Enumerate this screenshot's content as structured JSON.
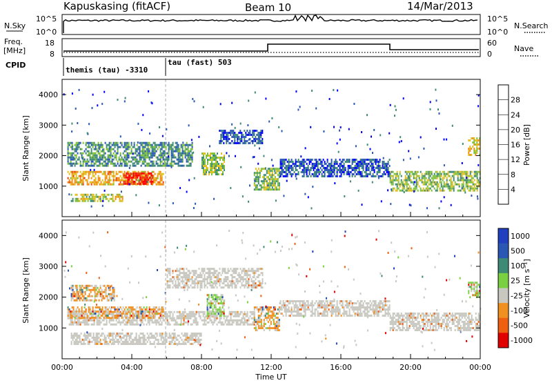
{
  "header": {
    "station": "Kapuskasing (fitACF)",
    "beam": "Beam 10",
    "date": "14/Mar/2013"
  },
  "noise_panel": {
    "left_label": "N.Sky",
    "left_ticks": [
      "10^5",
      "10^0"
    ],
    "right_ticks": [
      "10^5",
      "10^0"
    ],
    "right_label": "N.Search"
  },
  "freq_panel": {
    "left_label_1": "Freq.",
    "left_label_2": "[MHz]",
    "left_ticks": [
      "18",
      "8"
    ],
    "right_ticks": [
      "60",
      "0"
    ],
    "right_label": "Nave"
  },
  "cpid": {
    "label": "CPID",
    "segments": [
      "themis (tau) -3310",
      "tau (fast) 503"
    ]
  },
  "colors": {
    "power": [
      "#0000ff",
      "#2a57b3",
      "#3e8a74",
      "#7fc03a",
      "#e0c020",
      "#f08a10",
      "#e84010",
      "#ff0000"
    ],
    "velocity": [
      "#2040c0",
      "#2a57b3",
      "#3e8a74",
      "#7ad040",
      "#c8c8c0",
      "#f09020",
      "#ee6010",
      "#e00000"
    ],
    "ground_scatter": "#c8c8c0"
  },
  "chart_data": [
    {
      "type": "heatmap",
      "panel": "power",
      "ylabel": "Slant Range [km]",
      "y_ticks": [
        "1000",
        "2000",
        "3000",
        "4000"
      ],
      "ylim": [
        0,
        4500
      ],
      "colorbar_label": "Power [dB]",
      "colorbar_ticks": [
        "4",
        "8",
        "12",
        "16",
        "20",
        "24",
        "28"
      ],
      "colorbar_range": [
        0,
        30
      ],
      "echo_bands": [
        {
          "t_start": 0.3,
          "t_end": 5.8,
          "r_start": 1050,
          "r_end": 1500,
          "level": 20
        },
        {
          "t_start": 3.5,
          "t_end": 5.2,
          "r_start": 1100,
          "r_end": 1450,
          "level": 28
        },
        {
          "t_start": 0.3,
          "t_end": 7.5,
          "r_start": 1700,
          "r_end": 2450,
          "level": 10
        },
        {
          "t_start": 0.5,
          "t_end": 3.5,
          "r_start": 500,
          "r_end": 750,
          "level": 16
        },
        {
          "t_start": 8.0,
          "t_end": 9.3,
          "r_start": 1400,
          "r_end": 2100,
          "level": 14
        },
        {
          "t_start": 9.0,
          "t_end": 11.5,
          "r_start": 2400,
          "r_end": 2850,
          "level": 6
        },
        {
          "t_start": 11.0,
          "t_end": 12.5,
          "r_start": 900,
          "r_end": 1600,
          "level": 14
        },
        {
          "t_start": 12.5,
          "t_end": 18.8,
          "r_start": 1350,
          "r_end": 1900,
          "level": 6
        },
        {
          "t_start": 18.8,
          "t_end": 24.0,
          "r_start": 850,
          "r_end": 1500,
          "level": 14
        },
        {
          "t_start": 23.3,
          "t_end": 24.0,
          "r_start": 2000,
          "r_end": 2600,
          "level": 18
        }
      ]
    },
    {
      "type": "heatmap",
      "panel": "velocity",
      "ylabel": "Slant Range [km]",
      "y_ticks": [
        "1000",
        "2000",
        "3000",
        "4000"
      ],
      "ylim": [
        0,
        4500
      ],
      "xlabel": "Time UT",
      "x_ticks": [
        "00:00",
        "04:00",
        "08:00",
        "12:00",
        "16:00",
        "20:00",
        "00:00"
      ],
      "xlim": [
        0,
        24
      ],
      "colorbar_label": "Velocity [m s⁻¹]",
      "colorbar_ticks": [
        "1000",
        "500",
        "100",
        "25",
        "-25",
        "-100",
        "-500",
        "-1000"
      ],
      "echo_bands": [
        {
          "t_start": 0.3,
          "t_end": 11.0,
          "r_start": 1100,
          "r_end": 1550,
          "level": "ground"
        },
        {
          "t_start": 0.3,
          "t_end": 5.8,
          "r_start": 1300,
          "r_end": 1700,
          "level": -100
        },
        {
          "t_start": 0.5,
          "t_end": 3.0,
          "r_start": 1900,
          "r_end": 2400,
          "level": -100
        },
        {
          "t_start": 8.3,
          "t_end": 9.3,
          "r_start": 1400,
          "r_end": 2100,
          "level": 100
        },
        {
          "t_start": 6.0,
          "t_end": 11.5,
          "r_start": 2300,
          "r_end": 2950,
          "level": "ground"
        },
        {
          "t_start": 0.5,
          "t_end": 8.0,
          "r_start": 500,
          "r_end": 850,
          "level": "ground"
        },
        {
          "t_start": 11.0,
          "t_end": 12.5,
          "r_start": 950,
          "r_end": 1700,
          "level": -100
        },
        {
          "t_start": 12.5,
          "t_end": 18.8,
          "r_start": 1400,
          "r_end": 1900,
          "level": "ground"
        },
        {
          "t_start": 18.8,
          "t_end": 24.0,
          "r_start": 900,
          "r_end": 1500,
          "level": "ground"
        },
        {
          "t_start": 23.3,
          "t_end": 24.0,
          "r_start": 2000,
          "r_end": 2500,
          "level": 100
        }
      ]
    }
  ]
}
